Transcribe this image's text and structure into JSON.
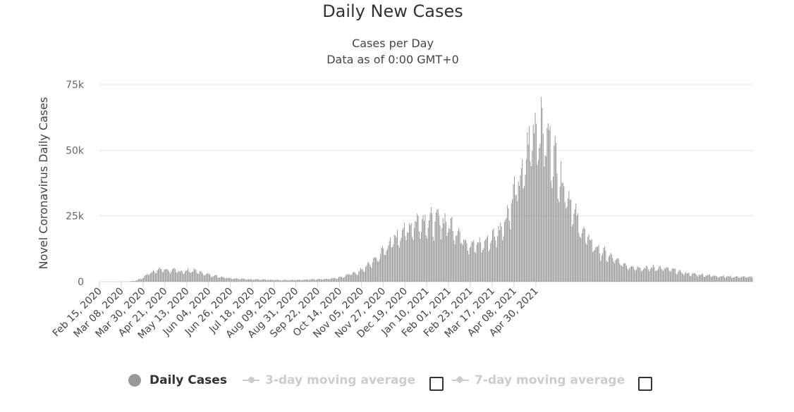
{
  "chart_data": {
    "type": "bar",
    "title": "Daily New Cases",
    "subtitle_lines": [
      "Cases per Day",
      "Data as of 0:00 GMT+0"
    ],
    "ylabel": "Novel Coronavirus Daily Cases",
    "xlabel": "",
    "ylim": [
      0,
      75000
    ],
    "y_ticks": [
      "0",
      "25k",
      "50k",
      "75k"
    ],
    "y_tick_values": [
      0,
      25000,
      50000,
      75000
    ],
    "grid": "horizontal",
    "x_ticks": [
      "Feb 15, 2020",
      "Mar 08, 2020",
      "Mar 30, 2020",
      "Apr 21, 2020",
      "May 13, 2020",
      "Jun 04, 2020",
      "Jun 26, 2020",
      "Jul 18, 2020",
      "Aug 09, 2020",
      "Aug 31, 2020",
      "Sep 22, 2020",
      "Oct 14, 2020",
      "Nov 05, 2020",
      "Nov 27, 2020",
      "Dec 19, 2020",
      "Jan 10, 2021",
      "Feb 01, 2021",
      "Feb 23, 2021",
      "Mar 17, 2021",
      "Apr 08, 2021",
      "Apr 30, 2021"
    ],
    "x_range": [
      "Feb 15, 2020",
      "May 21, 2021"
    ],
    "series": [
      {
        "name": "Daily Cases",
        "color": "#999999",
        "weekly_values": [
          0,
          0,
          0,
          20,
          50,
          300,
          1200,
          3000,
          4200,
          4600,
          4300,
          4000,
          3800,
          4200,
          3900,
          3000,
          2500,
          2000,
          1600,
          1300,
          1100,
          1000,
          900,
          800,
          700,
          650,
          600,
          600,
          650,
          700,
          800,
          900,
          1000,
          1100,
          1400,
          1900,
          2800,
          3300,
          4800,
          6800,
          9000,
          12000,
          14500,
          17000,
          19000,
          21000,
          22500,
          23000,
          22000,
          23000,
          21500,
          20000,
          17000,
          14500,
          13500,
          14000,
          15000,
          17500,
          21000,
          27000,
          35000,
          40000,
          53000,
          58000,
          55000,
          50000,
          42000,
          35000,
          28000,
          21000,
          17000,
          14000,
          11500,
          10000,
          8500,
          7000,
          6000,
          5500,
          5200,
          5000,
          5200,
          5000,
          4600,
          4000,
          3300,
          2900,
          2700,
          2500,
          2300,
          2100,
          2000,
          1900,
          1800,
          1800,
          1700
        ]
      },
      {
        "name": "3-day moving average",
        "visible": false
      },
      {
        "name": "7-day moving average",
        "visible": false
      }
    ],
    "legend_position": "bottom-center"
  },
  "legend": {
    "items": [
      "Daily Cases",
      "3-day moving average",
      "7-day moving average"
    ]
  },
  "colors": {
    "bar": "#999999",
    "grid": "#e6e6e6",
    "axis": "#ccd6eb",
    "text": "#333333",
    "legend_off": "#cccccc"
  }
}
